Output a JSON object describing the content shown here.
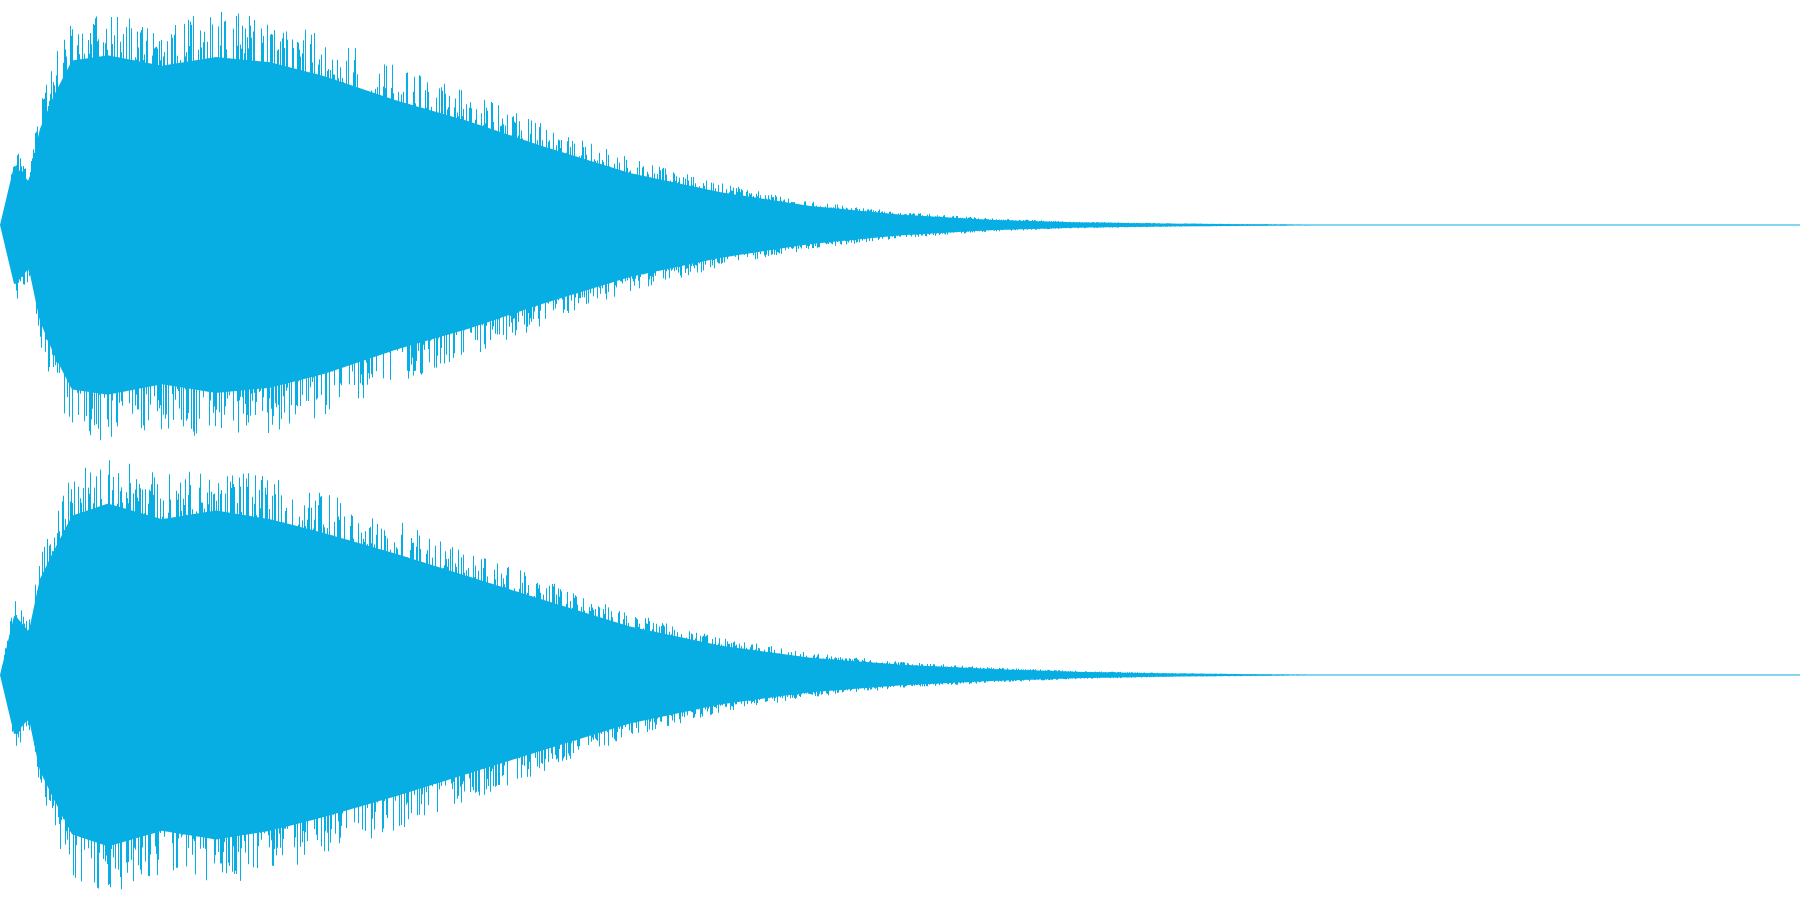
{
  "waveform": {
    "color": "#06aee4",
    "background": "#ffffff",
    "channels": [
      {
        "name": "",
        "peak_envelope": [
          [
            0.0,
            0.0
          ],
          [
            0.008,
            0.35
          ],
          [
            0.016,
            0.25
          ],
          [
            0.022,
            0.55
          ],
          [
            0.03,
            0.75
          ],
          [
            0.04,
            0.95
          ],
          [
            0.06,
            0.98
          ],
          [
            0.09,
            0.92
          ],
          [
            0.12,
            0.97
          ],
          [
            0.15,
            0.94
          ],
          [
            0.18,
            0.86
          ],
          [
            0.22,
            0.72
          ],
          [
            0.26,
            0.6
          ],
          [
            0.3,
            0.46
          ],
          [
            0.35,
            0.3
          ],
          [
            0.4,
            0.19
          ],
          [
            0.45,
            0.11
          ],
          [
            0.5,
            0.06
          ],
          [
            0.55,
            0.03
          ],
          [
            0.6,
            0.015
          ],
          [
            0.65,
            0.008
          ],
          [
            0.7,
            0.004
          ],
          [
            0.78,
            0.0
          ]
        ]
      },
      {
        "name": "",
        "peak_envelope": [
          [
            0.0,
            0.0
          ],
          [
            0.008,
            0.35
          ],
          [
            0.016,
            0.25
          ],
          [
            0.022,
            0.55
          ],
          [
            0.03,
            0.72
          ],
          [
            0.04,
            0.92
          ],
          [
            0.06,
            0.99
          ],
          [
            0.09,
            0.9
          ],
          [
            0.12,
            0.95
          ],
          [
            0.15,
            0.9
          ],
          [
            0.18,
            0.82
          ],
          [
            0.22,
            0.7
          ],
          [
            0.26,
            0.57
          ],
          [
            0.3,
            0.44
          ],
          [
            0.35,
            0.28
          ],
          [
            0.4,
            0.17
          ],
          [
            0.45,
            0.1
          ],
          [
            0.5,
            0.06
          ],
          [
            0.55,
            0.035
          ],
          [
            0.6,
            0.018
          ],
          [
            0.65,
            0.009
          ],
          [
            0.7,
            0.004
          ],
          [
            0.78,
            0.0
          ]
        ]
      }
    ]
  }
}
